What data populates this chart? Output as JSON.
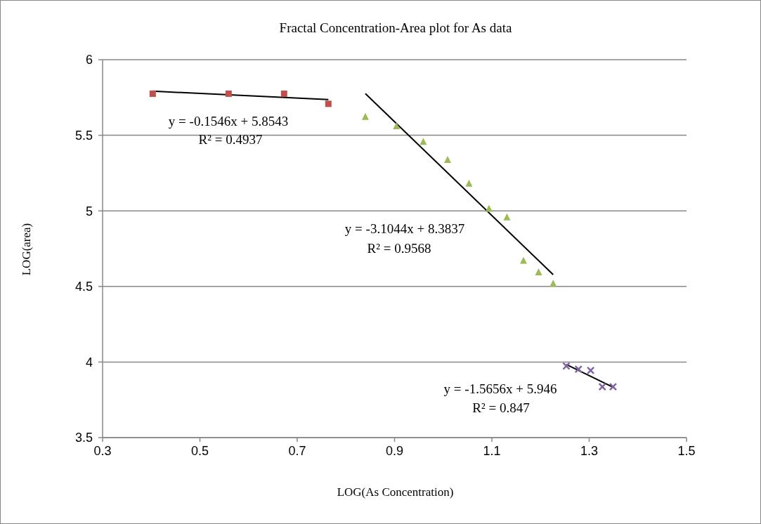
{
  "chart_data": {
    "type": "scatter",
    "title": "Fractal Concentration-Area plot for As data",
    "xlabel": "LOG(As Concentration)",
    "ylabel": "LOG(area)",
    "xlim": [
      0.3,
      1.5
    ],
    "xticks": [
      0.3,
      0.5,
      0.7,
      0.9,
      1.1,
      1.3,
      1.5
    ],
    "ylim": [
      3.5,
      6
    ],
    "yticks": [
      3.5,
      4,
      4.5,
      5,
      5.5,
      6
    ],
    "grid": "y",
    "legend": false,
    "series": [
      {
        "marker": "square",
        "color": "#c0504d",
        "x": [
          0.403,
          0.559,
          0.673,
          0.764
        ],
        "values": [
          5.775,
          5.775,
          5.775,
          5.708
        ]
      },
      {
        "marker": "triangle",
        "color": "#9bbb59",
        "x": [
          0.84,
          0.904,
          0.959,
          1.009,
          1.053,
          1.094,
          1.131,
          1.165,
          1.196,
          1.226
        ],
        "values": [
          5.623,
          5.561,
          5.457,
          5.338,
          5.181,
          5.015,
          4.958,
          4.671,
          4.594,
          4.519
        ]
      },
      {
        "marker": "cross",
        "color": "#8064a2",
        "x": [
          1.253,
          1.278,
          1.303,
          1.327,
          1.349
        ],
        "values": [
          3.973,
          3.952,
          3.944,
          3.836,
          3.836
        ]
      },
      {
        "type": "line",
        "marker": "none",
        "color": "#000000",
        "x": [
          0.403,
          0.764
        ],
        "values": [
          5.792,
          5.736
        ]
      },
      {
        "type": "line",
        "marker": "none",
        "color": "#000000",
        "x": [
          0.84,
          1.226
        ],
        "values": [
          5.776,
          4.578
        ]
      },
      {
        "type": "line",
        "marker": "none",
        "color": "#000000",
        "x": [
          1.253,
          1.35
        ],
        "values": [
          3.984,
          3.832
        ]
      }
    ],
    "annotations": [
      "y = -0.1546x + 5.8543",
      "R² = 0.4937",
      "y = -3.1044x + 8.3837",
      "R² = 0.9568",
      "y = -1.5656x + 5.946",
      "R² = 0.847"
    ]
  }
}
